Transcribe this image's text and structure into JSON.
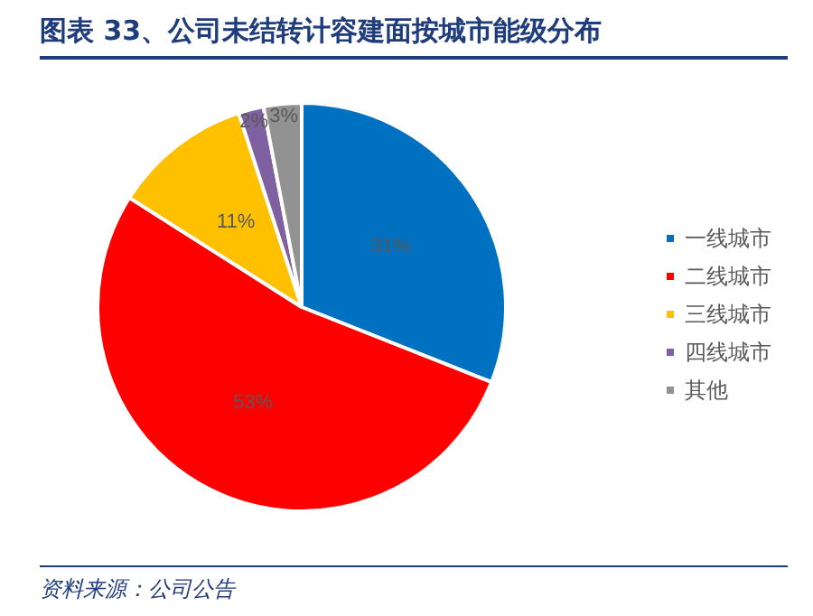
{
  "chart_data": {
    "type": "pie",
    "title": "图表 33、公司未结转计容建面按城市能级分布",
    "categories": [
      "一线城市",
      "二线城市",
      "三线城市",
      "四线城市",
      "其他"
    ],
    "values": [
      31,
      53,
      11,
      2,
      3
    ],
    "value_labels": [
      "31%",
      "53%",
      "11%",
      "2%",
      "3%"
    ],
    "colors": [
      "#0070c0",
      "#ff0000",
      "#ffc000",
      "#7f60a0",
      "#929292"
    ],
    "legend": "right",
    "annotations": [
      "资料来源：公司公告"
    ]
  }
}
